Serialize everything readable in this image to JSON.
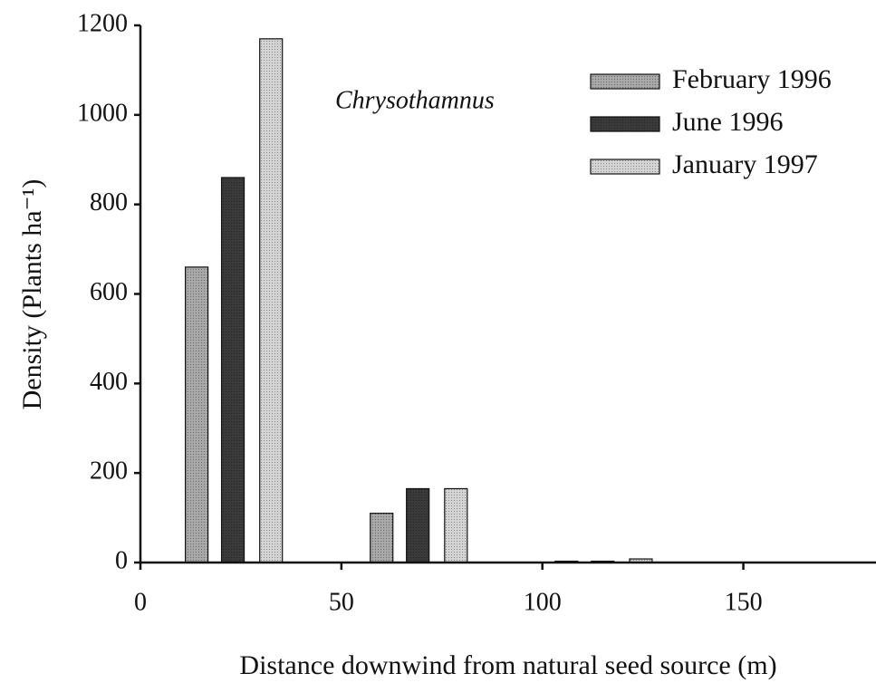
{
  "chart_data": {
    "type": "bar",
    "xlabel": "Distance downwind from natural seed source (m)",
    "ylabel": "Density (Plants ha⁻¹)",
    "annotation": "Chrysothamnus",
    "xlim": [
      0,
      183
    ],
    "xticks": [
      0,
      50,
      100,
      150
    ],
    "ylim": [
      0,
      1200
    ],
    "yticks": [
      0,
      200,
      400,
      600,
      800,
      1000,
      1200
    ],
    "grid": false,
    "legend": "upper right",
    "series": [
      {
        "name": "February 1996",
        "color": "#a8a8a8",
        "x": [
          14,
          60,
          106
        ],
        "values": [
          660,
          110,
          3
        ]
      },
      {
        "name": "June 1996",
        "color": "#3a3a3a",
        "x": [
          23,
          69,
          115
        ],
        "values": [
          860,
          165,
          3
        ]
      },
      {
        "name": "January 1997",
        "color": "#d4d4d4",
        "x": [
          32.5,
          78.5,
          124.5
        ],
        "values": [
          1170,
          165,
          8
        ]
      }
    ]
  }
}
